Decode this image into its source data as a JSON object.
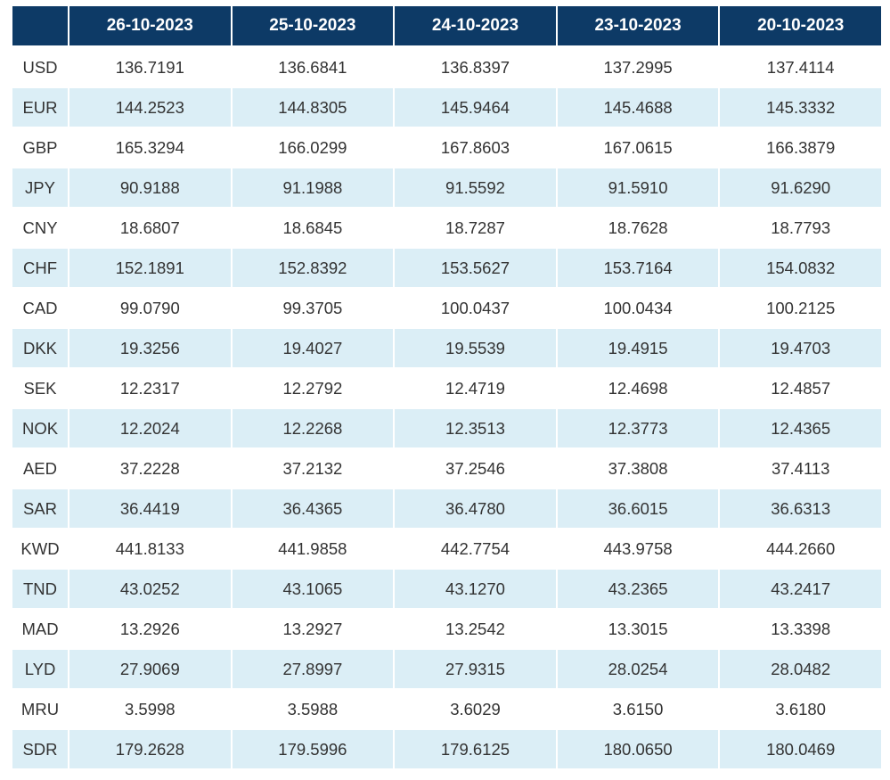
{
  "table": {
    "corner_label": "",
    "headers": [
      "26-10-2023",
      "25-10-2023",
      "24-10-2023",
      "23-10-2023",
      "20-10-2023"
    ],
    "rows": [
      {
        "code": "USD",
        "values": [
          "136.7191",
          "136.6841",
          "136.8397",
          "137.2995",
          "137.4114"
        ]
      },
      {
        "code": "EUR",
        "values": [
          "144.2523",
          "144.8305",
          "145.9464",
          "145.4688",
          "145.3332"
        ]
      },
      {
        "code": "GBP",
        "values": [
          "165.3294",
          "166.0299",
          "167.8603",
          "167.0615",
          "166.3879"
        ]
      },
      {
        "code": "JPY",
        "values": [
          "90.9188",
          "91.1988",
          "91.5592",
          "91.5910",
          "91.6290"
        ]
      },
      {
        "code": "CNY",
        "values": [
          "18.6807",
          "18.6845",
          "18.7287",
          "18.7628",
          "18.7793"
        ]
      },
      {
        "code": "CHF",
        "values": [
          "152.1891",
          "152.8392",
          "153.5627",
          "153.7164",
          "154.0832"
        ]
      },
      {
        "code": "CAD",
        "values": [
          "99.0790",
          "99.3705",
          "100.0437",
          "100.0434",
          "100.2125"
        ]
      },
      {
        "code": "DKK",
        "values": [
          "19.3256",
          "19.4027",
          "19.5539",
          "19.4915",
          "19.4703"
        ]
      },
      {
        "code": "SEK",
        "values": [
          "12.2317",
          "12.2792",
          "12.4719",
          "12.4698",
          "12.4857"
        ]
      },
      {
        "code": "NOK",
        "values": [
          "12.2024",
          "12.2268",
          "12.3513",
          "12.3773",
          "12.4365"
        ]
      },
      {
        "code": "AED",
        "values": [
          "37.2228",
          "37.2132",
          "37.2546",
          "37.3808",
          "37.4113"
        ]
      },
      {
        "code": "SAR",
        "values": [
          "36.4419",
          "36.4365",
          "36.4780",
          "36.6015",
          "36.6313"
        ]
      },
      {
        "code": "KWD",
        "values": [
          "441.8133",
          "441.9858",
          "442.7754",
          "443.9758",
          "444.2660"
        ]
      },
      {
        "code": "TND",
        "values": [
          "43.0252",
          "43.1065",
          "43.1270",
          "43.2365",
          "43.2417"
        ]
      },
      {
        "code": "MAD",
        "values": [
          "13.2926",
          "13.2927",
          "13.2542",
          "13.3015",
          "13.3398"
        ]
      },
      {
        "code": "LYD",
        "values": [
          "27.9069",
          "27.8997",
          "27.9315",
          "28.0254",
          "28.0482"
        ]
      },
      {
        "code": "MRU",
        "values": [
          "3.5998",
          "3.5988",
          "3.6029",
          "3.6150",
          "3.6180"
        ]
      },
      {
        "code": "SDR",
        "values": [
          "179.2628",
          "179.5996",
          "179.6125",
          "180.0650",
          "180.0469"
        ]
      }
    ]
  },
  "colors": {
    "header_bg": "#0d3a66",
    "header_text": "#ffffff",
    "stripe_bg": "#dbeef6",
    "body_text": "#333333"
  }
}
